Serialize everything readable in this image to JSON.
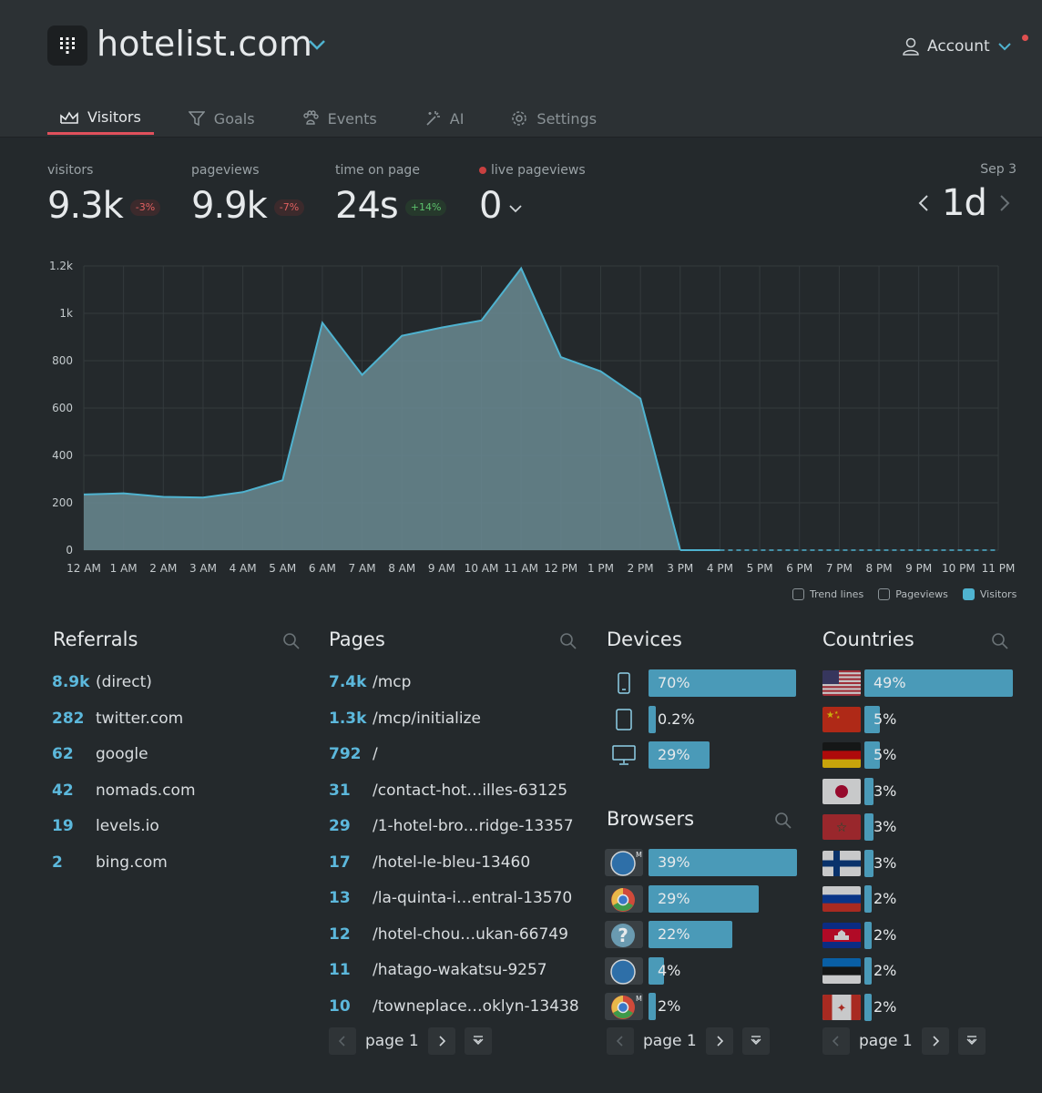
{
  "header": {
    "site_title": "hotelist.com",
    "account_label": "Account"
  },
  "tabs": [
    {
      "label": "Visitors",
      "icon": "chart-icon",
      "active": true
    },
    {
      "label": "Goals",
      "icon": "funnel-icon",
      "active": false
    },
    {
      "label": "Events",
      "icon": "paw-icon",
      "active": false
    },
    {
      "label": "AI",
      "icon": "magic-wand-icon",
      "active": false
    },
    {
      "label": "Settings",
      "icon": "gear-icon",
      "active": false
    }
  ],
  "stats": {
    "visitors": {
      "label": "visitors",
      "value": "9.3k",
      "change": "-3%"
    },
    "pageviews": {
      "label": "pageviews",
      "value": "9.9k",
      "change": "-7%"
    },
    "time_on_page": {
      "label": "time on page",
      "value": "24s",
      "change": "+14%"
    },
    "live": {
      "label": "live pageviews",
      "value": "0"
    }
  },
  "date": {
    "label": "Sep 3",
    "range": "1d"
  },
  "chart_data": {
    "type": "area",
    "x": [
      "12 AM",
      "1 AM",
      "2 AM",
      "3 AM",
      "4 AM",
      "5 AM",
      "6 AM",
      "7 AM",
      "8 AM",
      "9 AM",
      "10 AM",
      "11 AM",
      "12 PM",
      "1 PM",
      "2 PM",
      "3 PM",
      "4 PM",
      "5 PM",
      "6 PM",
      "7 PM",
      "8 PM",
      "9 PM",
      "10 PM",
      "11 PM"
    ],
    "y_ticks": [
      "0",
      "200",
      "400",
      "600",
      "800",
      "1k",
      "1.2k"
    ],
    "ylim": [
      0,
      1200
    ],
    "series": [
      {
        "name": "Visitors",
        "values": [
          235,
          240,
          225,
          222,
          245,
          295,
          960,
          740,
          905,
          940,
          970,
          1190,
          815,
          755,
          640,
          0,
          0,
          0,
          0,
          0,
          0,
          0,
          0,
          0
        ]
      }
    ],
    "grid": true
  },
  "legend": [
    {
      "label": "Trend lines",
      "checked": false
    },
    {
      "label": "Pageviews",
      "checked": false
    },
    {
      "label": "Visitors",
      "checked": true
    }
  ],
  "referrals": {
    "title": "Referrals",
    "items": [
      {
        "count": "8.9k",
        "label": "(direct)"
      },
      {
        "count": "282",
        "label": "twitter.com"
      },
      {
        "count": "62",
        "label": "google"
      },
      {
        "count": "42",
        "label": "nomads.com"
      },
      {
        "count": "19",
        "label": "levels.io"
      },
      {
        "count": "2",
        "label": "bing.com"
      }
    ]
  },
  "pages": {
    "title": "Pages",
    "items": [
      {
        "count": "7.4k",
        "label": "/mcp"
      },
      {
        "count": "1.3k",
        "label": "/mcp/initialize"
      },
      {
        "count": "792",
        "label": "/"
      },
      {
        "count": "31",
        "label": "/contact-hot…illes-63125"
      },
      {
        "count": "29",
        "label": "/1-hotel-bro…ridge-13357"
      },
      {
        "count": "17",
        "label": "/hotel-le-bleu-13460"
      },
      {
        "count": "13",
        "label": "/la-quinta-i…entral-13570"
      },
      {
        "count": "12",
        "label": "/hotel-chou…ukan-66749"
      },
      {
        "count": "11",
        "label": "/hatago-wakatsu-9257"
      },
      {
        "count": "10",
        "label": "/towneplace…oklyn-13438"
      }
    ],
    "pager": "page 1"
  },
  "devices": {
    "title": "Devices",
    "items": [
      {
        "icon": "phone-icon",
        "pct": "70%",
        "fraction": 0.7
      },
      {
        "icon": "tablet-icon",
        "pct": "0.2%",
        "fraction": 0.002
      },
      {
        "icon": "desktop-icon",
        "pct": "29%",
        "fraction": 0.29
      }
    ]
  },
  "browsers": {
    "title": "Browsers",
    "items": [
      {
        "icon": "safari-mobile-icon",
        "pct": "39%",
        "fraction": 0.39
      },
      {
        "icon": "chrome-icon",
        "pct": "29%",
        "fraction": 0.29
      },
      {
        "icon": "unknown-browser-icon",
        "pct": "22%",
        "fraction": 0.22
      },
      {
        "icon": "safari-icon",
        "pct": "4%",
        "fraction": 0.04
      },
      {
        "icon": "chrome-mobile-icon",
        "pct": "2%",
        "fraction": 0.02
      }
    ],
    "pager": "page 1"
  },
  "countries": {
    "title": "Countries",
    "items": [
      {
        "flag": "us-flag-icon",
        "pct": "49%",
        "fraction": 0.49
      },
      {
        "flag": "china-flag-icon",
        "pct": "5%",
        "fraction": 0.05
      },
      {
        "flag": "germany-flag-icon",
        "pct": "5%",
        "fraction": 0.05
      },
      {
        "flag": "japan-flag-icon",
        "pct": "3%",
        "fraction": 0.03
      },
      {
        "flag": "morocco-flag-icon",
        "pct": "3%",
        "fraction": 0.03
      },
      {
        "flag": "finland-flag-icon",
        "pct": "3%",
        "fraction": 0.03
      },
      {
        "flag": "russia-flag-icon",
        "pct": "2%",
        "fraction": 0.02
      },
      {
        "flag": "cambodia-flag-icon",
        "pct": "2%",
        "fraction": 0.02
      },
      {
        "flag": "estonia-flag-icon",
        "pct": "2%",
        "fraction": 0.02
      },
      {
        "flag": "canada-flag-icon",
        "pct": "2%",
        "fraction": 0.02
      }
    ],
    "pager": "page 1"
  }
}
